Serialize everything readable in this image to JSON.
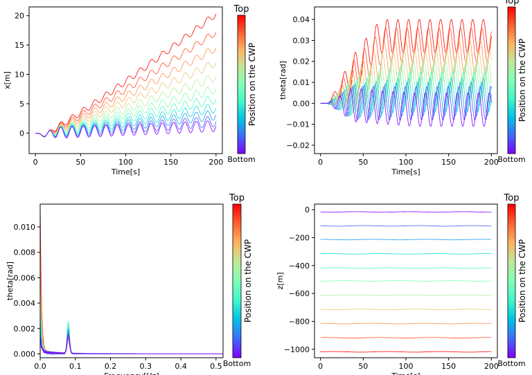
{
  "colorbar": {
    "label": "Position on the CWP",
    "top_label": "Top",
    "bottom_label": "Bottom",
    "colors": [
      "#8000ff",
      "#3f6bf9",
      "#00c3e6",
      "#41f7c9",
      "#80ffb4",
      "#c0e798",
      "#ffb360",
      "#ff6030",
      "#ff0000"
    ]
  },
  "chart_data": [
    {
      "id": "x-vs-time",
      "type": "line",
      "xlabel": "Time[s]",
      "ylabel": "x[m]",
      "xlim": [
        -7,
        207
      ],
      "ylim": [
        -3.5,
        21.5
      ],
      "xticks": [
        0,
        50,
        100,
        150,
        200
      ],
      "yticks": [
        0,
        5,
        10,
        15,
        20
      ],
      "grid": false,
      "series_count": 11,
      "final_values": [
        20.3,
        17.2,
        14.5,
        12.0,
        9.6,
        7.5,
        5.8,
        4.3,
        3.1,
        2.0,
        1.2
      ],
      "oscillation_amplitude": 0.9,
      "oscillation_period_s": 12.5
    },
    {
      "id": "theta-vs-time",
      "type": "line",
      "xlabel": "Time[s]",
      "ylabel": "theta[rad]",
      "xlim": [
        -7,
        207
      ],
      "ylim": [
        -0.024,
        0.046
      ],
      "xticks": [
        0,
        50,
        100,
        150,
        200
      ],
      "yticks": [
        -0.02,
        -0.01,
        0.0,
        0.01,
        0.02,
        0.03,
        0.04
      ],
      "ytick_labels": [
        "−0.02",
        "−0.01",
        "0.00",
        "0.01",
        "0.02",
        "0.03",
        "0.04"
      ],
      "grid": false,
      "series_count": 11,
      "mean_values": [
        0.032,
        0.028,
        0.022,
        0.017,
        0.013,
        0.01,
        0.007,
        0.004,
        0.002,
        0.0,
        -0.003
      ],
      "oscillation_amplitude": 0.008,
      "oscillation_period_s": 12.5
    },
    {
      "id": "theta-spectrum",
      "type": "line",
      "xlabel": "Frequency[Hz]",
      "ylabel": "theta[rad]",
      "xlim": [
        0,
        0.52
      ],
      "ylim": [
        -0.0003,
        0.0118
      ],
      "xticks": [
        0.0,
        0.1,
        0.2,
        0.3,
        0.4,
        0.5
      ],
      "xtick_labels": [
        "0.0",
        "0.1",
        "0.2",
        "0.3",
        "0.4",
        "0.5"
      ],
      "yticks": [
        0.0,
        0.002,
        0.004,
        0.006,
        0.008,
        0.01
      ],
      "ytick_labels": [
        "0.000",
        "0.002",
        "0.004",
        "0.006",
        "0.008",
        "0.010"
      ],
      "grid": false,
      "series_count": 11,
      "zero_freq_values": [
        0.0112,
        0.0095,
        0.0078,
        0.0062,
        0.005,
        0.0041,
        0.0034,
        0.0027,
        0.0021,
        0.0016,
        0.0012
      ],
      "peak_frequency_hz": 0.08,
      "peak_values": [
        0.0012,
        0.0015,
        0.0018,
        0.0021,
        0.0024,
        0.0025,
        0.0023,
        0.002,
        0.0018,
        0.0016,
        0.0014
      ]
    },
    {
      "id": "z-vs-time",
      "type": "line",
      "xlabel": "Time[s]",
      "ylabel": "z[m]",
      "xlim": [
        -7,
        207
      ],
      "ylim": [
        -1060,
        40
      ],
      "xticks": [
        0,
        50,
        100,
        150,
        200
      ],
      "yticks": [
        -1000,
        -800,
        -600,
        -400,
        -200,
        0
      ],
      "ytick_labels": [
        "−1000",
        "−800",
        "−600",
        "−400",
        "−200",
        "0"
      ],
      "grid": false,
      "series_count": 11,
      "levels": [
        -1018,
        -917,
        -815,
        -714,
        -612,
        -510,
        -418,
        -316,
        -214,
        -116,
        -16
      ]
    }
  ]
}
